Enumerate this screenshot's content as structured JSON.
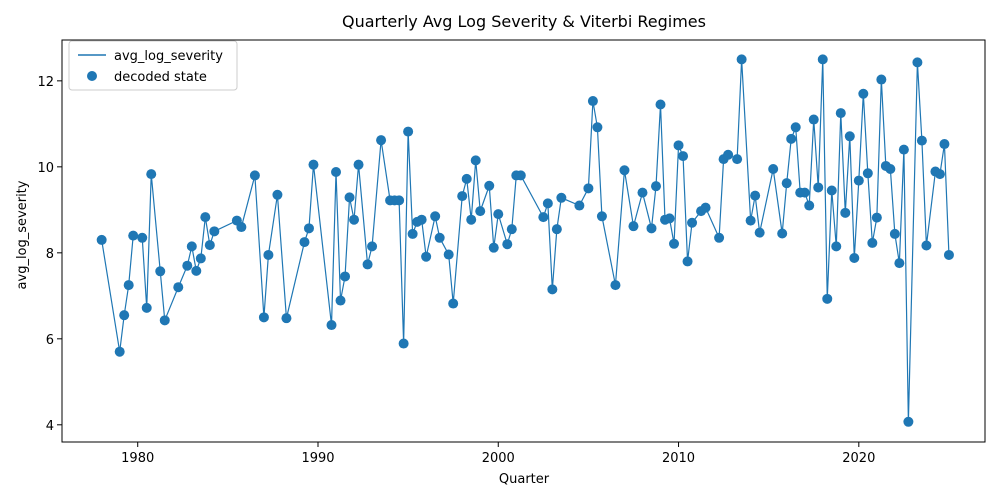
{
  "chart_data": {
    "type": "line",
    "title": "Quarterly Avg Log Severity & Viterbi Regimes",
    "xlabel": "Quarter",
    "ylabel": "avg_log_severity",
    "xlim": [
      1975.8,
      2027.0
    ],
    "ylim": [
      3.6,
      12.95
    ],
    "x_ticks": [
      1980,
      1990,
      2000,
      2010,
      2020
    ],
    "y_ticks": [
      4,
      6,
      8,
      10,
      12
    ],
    "grid": false,
    "legend_position": "top-left",
    "color": "#1f77b4",
    "series": [
      {
        "name": "avg_log_severity",
        "kind": "line",
        "x": [
          1978.0,
          1979.0,
          1979.25,
          1979.5,
          1979.75,
          1980.25,
          1980.5,
          1980.75,
          1981.25,
          1981.5,
          1982.25,
          1982.75,
          1983.0,
          1983.25,
          1983.5,
          1983.75,
          1984.0,
          1984.25,
          1985.5,
          1985.75,
          1986.5,
          1987.0,
          1987.25,
          1987.75,
          1988.25,
          1989.25,
          1989.5,
          1989.75,
          1990.75,
          1991.0,
          1991.25,
          1991.5,
          1991.75,
          1992.0,
          1992.25,
          1992.75,
          1993.0,
          1993.5,
          1994.0,
          1994.25,
          1994.5,
          1994.75,
          1995.0,
          1995.25,
          1995.5,
          1995.75,
          1996.0,
          1996.5,
          1996.75,
          1997.25,
          1997.5,
          1998.0,
          1998.25,
          1998.5,
          1998.75,
          1999.0,
          1999.5,
          1999.75,
          2000.0,
          2000.5,
          2000.75,
          2001.0,
          2001.25,
          2002.5,
          2002.75,
          2003.0,
          2003.25,
          2003.5,
          2004.5,
          2005.0,
          2005.25,
          2005.5,
          2005.75,
          2006.5,
          2007.0,
          2007.5,
          2008.0,
          2008.5,
          2008.75,
          2009.0,
          2009.25,
          2009.5,
          2009.75,
          2010.0,
          2010.25,
          2010.5,
          2010.75,
          2011.25,
          2011.5,
          2012.25,
          2012.5,
          2012.75,
          2013.25,
          2013.5,
          2014.0,
          2014.25,
          2014.5,
          2015.25,
          2015.75,
          2016.0,
          2016.25,
          2016.5,
          2016.75,
          2017.0,
          2017.25,
          2017.5,
          2017.75,
          2018.0,
          2018.25,
          2018.5,
          2018.75,
          2019.0,
          2019.25,
          2019.5,
          2019.75,
          2020.0,
          2020.25,
          2020.5,
          2020.75,
          2021.0,
          2021.25,
          2021.5,
          2021.75,
          2022.0,
          2022.25,
          2022.5,
          2022.75,
          2023.25,
          2023.5,
          2023.75,
          2024.25,
          2024.5,
          2024.75,
          2025.0
        ],
        "y": [
          8.3,
          5.7,
          6.55,
          7.25,
          8.4,
          8.35,
          6.72,
          9.83,
          7.57,
          6.43,
          7.2,
          7.7,
          8.15,
          7.58,
          7.87,
          8.83,
          8.18,
          8.5,
          8.75,
          8.6,
          9.8,
          6.5,
          7.95,
          9.35,
          6.48,
          8.25,
          8.57,
          10.05,
          6.32,
          9.88,
          6.89,
          7.45,
          9.29,
          8.77,
          10.05,
          7.73,
          8.15,
          10.62,
          9.22,
          9.22,
          9.22,
          5.89,
          10.82,
          8.44,
          8.72,
          8.77,
          7.91,
          8.85,
          8.35,
          7.96,
          6.82,
          9.32,
          9.72,
          8.77,
          10.15,
          8.97,
          9.56,
          8.12,
          8.9,
          8.2,
          8.55,
          9.8,
          9.8,
          8.83,
          9.15,
          7.15,
          8.55,
          9.28,
          9.1,
          9.5,
          11.53,
          10.92,
          8.85,
          7.25,
          9.92,
          8.62,
          9.4,
          8.57,
          9.55,
          11.45,
          8.77,
          8.8,
          8.21,
          10.5,
          10.25,
          7.8,
          8.7,
          8.97,
          9.05,
          8.35,
          10.18,
          10.28,
          10.18,
          12.5,
          8.75,
          9.33,
          8.47,
          9.95,
          8.45,
          9.62,
          10.65,
          10.92,
          9.4,
          9.4,
          9.1,
          11.1,
          9.52,
          12.5,
          6.93,
          9.45,
          8.15,
          11.25,
          8.93,
          10.71,
          7.88,
          9.68,
          11.7,
          9.85,
          8.23,
          8.82,
          12.03,
          10.02,
          9.95,
          8.44,
          7.76,
          10.4,
          4.07,
          12.43,
          10.61,
          8.17,
          9.89,
          9.83,
          10.53,
          7.95
        ]
      },
      {
        "name": "decoded state",
        "kind": "scatter"
      }
    ]
  }
}
